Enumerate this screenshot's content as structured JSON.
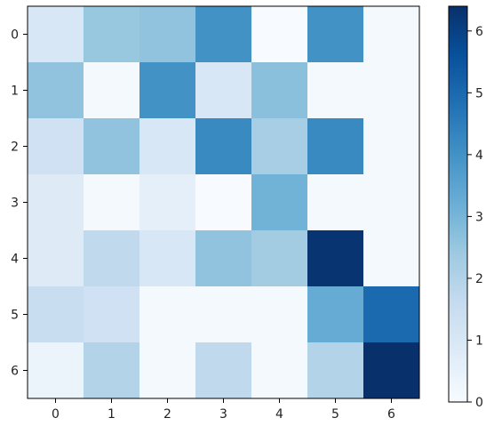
{
  "chart_data": {
    "type": "heatmap",
    "title": "",
    "xlabel": "",
    "ylabel": "",
    "x_categories": [
      "0",
      "1",
      "2",
      "3",
      "4",
      "5",
      "6"
    ],
    "y_categories": [
      "0",
      "1",
      "2",
      "3",
      "4",
      "5",
      "6"
    ],
    "values": [
      [
        1.0,
        2.5,
        2.6,
        4.0,
        0.0,
        4.0,
        0.1
      ],
      [
        2.6,
        0.1,
        4.0,
        1.0,
        2.7,
        0.1,
        0.1
      ],
      [
        1.3,
        2.6,
        1.0,
        4.2,
        2.2,
        4.2,
        0.1
      ],
      [
        0.8,
        0.1,
        0.6,
        0.0,
        3.1,
        0.1,
        0.1
      ],
      [
        0.8,
        1.7,
        1.0,
        2.6,
        2.3,
        6.3,
        0.1
      ],
      [
        1.5,
        1.3,
        0.1,
        0.1,
        0.1,
        3.3,
        5.0
      ],
      [
        0.4,
        2.0,
        0.1,
        1.7,
        0.1,
        2.0,
        6.4
      ]
    ],
    "colormap": "Blues",
    "value_range": [
      0,
      6.4
    ],
    "colorbar_ticks": [
      0,
      1,
      2,
      3,
      4,
      5,
      6
    ],
    "colors": {
      "low": "#f7fbff",
      "high": "#08306b",
      "axis": "#000000",
      "text": "#222222"
    }
  }
}
